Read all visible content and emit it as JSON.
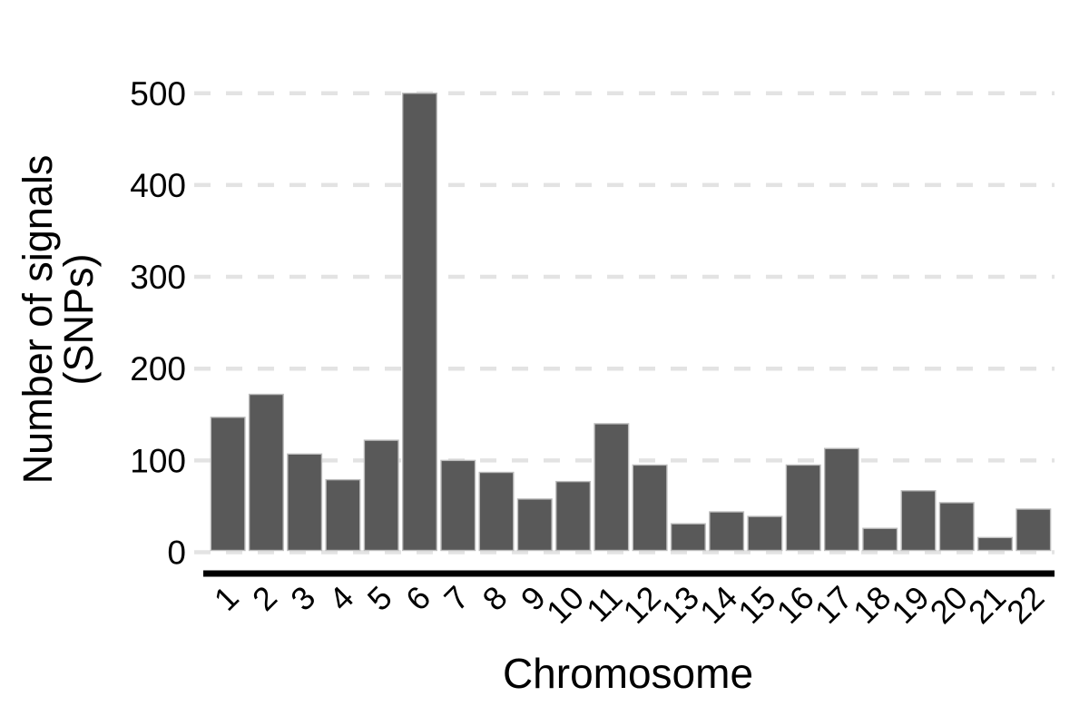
{
  "chart_data": {
    "type": "bar",
    "title": "",
    "xlabel": "Chromosome",
    "ylabel": "Number of signals (SNPs)",
    "ylabel_lines": [
      "Number of signals",
      "(SNPs)"
    ],
    "categories": [
      "1",
      "2",
      "3",
      "4",
      "5",
      "6",
      "7",
      "8",
      "9",
      "10",
      "11",
      "12",
      "13",
      "14",
      "15",
      "16",
      "17",
      "18",
      "19",
      "20",
      "21",
      "22"
    ],
    "values": [
      145,
      170,
      105,
      77,
      120,
      498,
      98,
      85,
      56,
      75,
      138,
      93,
      29,
      42,
      37,
      93,
      111,
      24,
      65,
      52,
      14,
      45
    ],
    "yticks": [
      0,
      100,
      200,
      300,
      400,
      500
    ],
    "ylim": [
      0,
      500
    ],
    "legend_position": "none",
    "grid": {
      "horizontal_major": true,
      "style": "dashed",
      "vertical": false
    },
    "x_tick_rotation_deg": 45,
    "colors": {
      "bar_fill": "#595959",
      "bar_edge": "#bcbcbc",
      "gridline": "#e3e3e3",
      "axis_line": "#000000",
      "text": "#000000",
      "background": "#ffffff"
    }
  }
}
